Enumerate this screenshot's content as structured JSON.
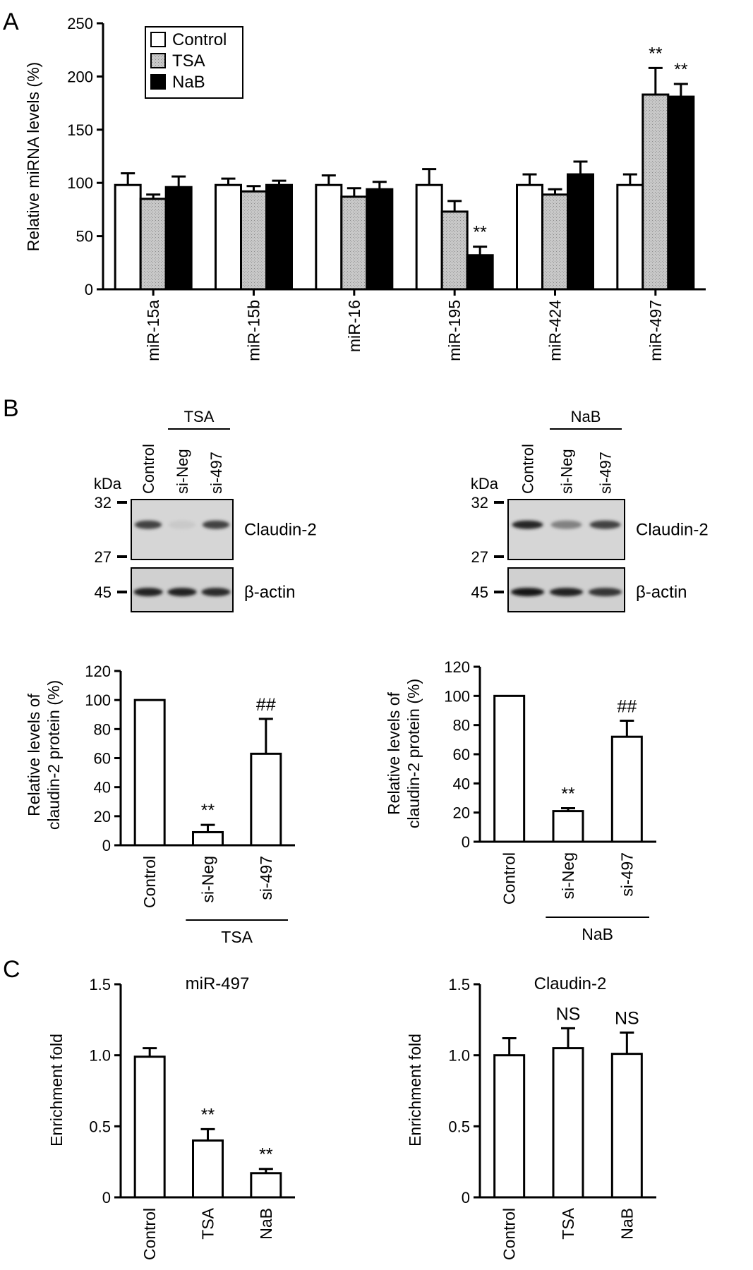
{
  "panels": {
    "a": "A",
    "b": "B",
    "c": "C"
  },
  "colors": {
    "control": "#ffffff",
    "tsa": "#c8c8c8",
    "nab": "#000000",
    "axis": "#000000"
  },
  "panel_b_blots": [
    {
      "group_label": "TSA",
      "lanes": [
        "Control",
        "si-Neg",
        "si-497"
      ],
      "kda_label": "kDa",
      "markers": [
        "32",
        "27",
        "45"
      ],
      "protein_labels": [
        "Claudin-2",
        "β-actin"
      ],
      "claudin_band_intensity": [
        0.8,
        0.05,
        0.8
      ],
      "actin_band_intensity": [
        0.95,
        0.95,
        0.9
      ]
    },
    {
      "group_label": "NaB",
      "lanes": [
        "Control",
        "si-Neg",
        "si-497"
      ],
      "kda_label": "kDa",
      "markers": [
        "32",
        "27",
        "45"
      ],
      "protein_labels": [
        "Claudin-2",
        "β-actin"
      ],
      "claudin_band_intensity": [
        0.95,
        0.45,
        0.8
      ],
      "actin_band_intensity": [
        1.0,
        0.95,
        0.85
      ]
    }
  ],
  "chart_data": [
    {
      "id": "A",
      "type": "bar",
      "categories": [
        "miR-15a",
        "miR-15b",
        "miR-16",
        "miR-195",
        "miR-424",
        "miR-497"
      ],
      "series": [
        {
          "name": "Control",
          "values": [
            98,
            98,
            98,
            98,
            98,
            98
          ],
          "errors": [
            11,
            6,
            9,
            15,
            10,
            10
          ]
        },
        {
          "name": "TSA",
          "values": [
            85,
            92,
            87,
            73,
            89,
            183
          ],
          "errors": [
            4,
            5,
            8,
            10,
            5,
            25
          ]
        },
        {
          "name": "NaB",
          "values": [
            96,
            98,
            94,
            32,
            108,
            181
          ],
          "errors": [
            10,
            4,
            7,
            8,
            12,
            12
          ]
        }
      ],
      "significance": [
        {
          "category": "miR-195",
          "series": "NaB",
          "label": "**"
        },
        {
          "category": "miR-497",
          "series": "TSA",
          "label": "**"
        },
        {
          "category": "miR-497",
          "series": "NaB",
          "label": "**"
        }
      ],
      "ylabel": "Relative miRNA levels  (%)",
      "ylim": [
        0,
        250
      ],
      "yticks": [
        "0",
        "50",
        "100",
        "150",
        "200",
        "250"
      ],
      "legend_position": "top-left",
      "grid": false
    },
    {
      "id": "B-left",
      "type": "bar",
      "categories": [
        "Control",
        "si-Neg",
        "si-497"
      ],
      "values": [
        100,
        9,
        63
      ],
      "errors": [
        0,
        5,
        24
      ],
      "significance": [
        {
          "category": "si-Neg",
          "label": "**"
        },
        {
          "category": "si-497",
          "label": "##"
        }
      ],
      "ylabel_lines": [
        "Relative levels of",
        "claudin-2 protein (%)"
      ],
      "group_label": "TSA",
      "ylim": [
        0,
        120
      ],
      "yticks": [
        "0",
        "20",
        "40",
        "60",
        "80",
        "100",
        "120"
      ],
      "grid": false
    },
    {
      "id": "B-right",
      "type": "bar",
      "categories": [
        "Control",
        "si-Neg",
        "si-497"
      ],
      "values": [
        100,
        21,
        72
      ],
      "errors": [
        0,
        2,
        11
      ],
      "significance": [
        {
          "category": "si-Neg",
          "label": "**"
        },
        {
          "category": "si-497",
          "label": "##"
        }
      ],
      "ylabel_lines": [
        "Relative levels of",
        "claudin-2 protein (%)"
      ],
      "group_label": "NaB",
      "ylim": [
        0,
        120
      ],
      "yticks": [
        "0",
        "20",
        "40",
        "60",
        "80",
        "100",
        "120"
      ],
      "grid": false
    },
    {
      "id": "C-left",
      "type": "bar",
      "title": "miR-497",
      "categories": [
        "Control",
        "TSA",
        "NaB"
      ],
      "values": [
        0.99,
        0.4,
        0.17
      ],
      "errors": [
        0.06,
        0.08,
        0.03
      ],
      "significance": [
        {
          "category": "TSA",
          "label": "**"
        },
        {
          "category": "NaB",
          "label": "**"
        }
      ],
      "ylabel": "Enrichment fold",
      "ylim": [
        0,
        1.5
      ],
      "yticks": [
        "0",
        "0.5",
        "1.0",
        "1.5"
      ],
      "grid": false
    },
    {
      "id": "C-right",
      "type": "bar",
      "title": "Claudin-2",
      "categories": [
        "Control",
        "TSA",
        "NaB"
      ],
      "values": [
        1.0,
        1.05,
        1.01
      ],
      "errors": [
        0.12,
        0.14,
        0.15
      ],
      "significance": [
        {
          "category": "TSA",
          "label": "NS"
        },
        {
          "category": "NaB",
          "label": "NS"
        }
      ],
      "ylabel": "Enrichment fold",
      "ylim": [
        0,
        1.5
      ],
      "yticks": [
        "0",
        "0.5",
        "1.0",
        "1.5"
      ],
      "grid": false
    }
  ]
}
